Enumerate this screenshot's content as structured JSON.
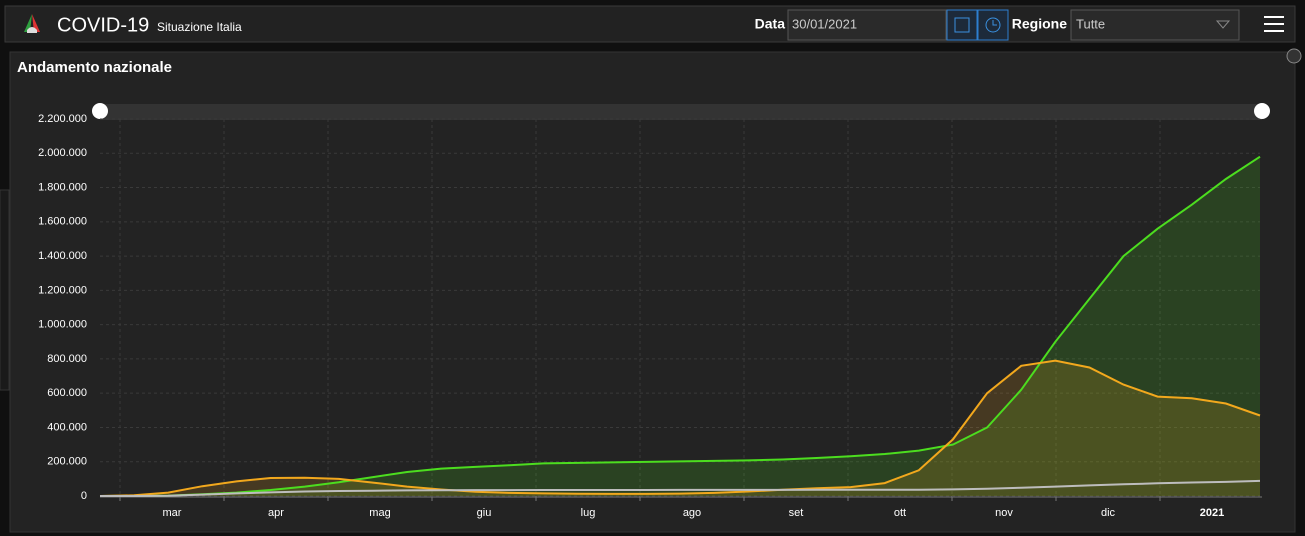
{
  "header": {
    "title": "COVID-19",
    "subtitle": "Situazione Italia",
    "date_label": "Data",
    "date_value": "30/01/2021",
    "region_label": "Regione",
    "region_value": "Tutte"
  },
  "chart_data": {
    "type": "line",
    "title": "Andamento nazionale",
    "xticks": [
      "mar",
      "apr",
      "mag",
      "giu",
      "lug",
      "ago",
      "set",
      "ott",
      "nov",
      "dic",
      "2021"
    ],
    "ylim": [
      0,
      2200000
    ],
    "yticks": [
      0,
      {
        "value": 200000,
        "label": "200.000"
      },
      {
        "value": 400000,
        "label": "400.000"
      },
      {
        "value": 600000,
        "label": "600.000"
      },
      {
        "value": 800000,
        "label": "800.000"
      },
      {
        "value": 1000000,
        "label": "1.000.000"
      },
      {
        "value": 1200000,
        "label": "1.200.000"
      },
      {
        "value": 1400000,
        "label": "1.400.000"
      },
      {
        "value": 1600000,
        "label": "1.600.000"
      },
      {
        "value": 1800000,
        "label": "1.800.000"
      },
      {
        "value": 2000000,
        "label": "2.000.000"
      },
      {
        "value": 2200000,
        "label": "2.200.000"
      }
    ],
    "grid": true,
    "series": [
      {
        "color": "#4cdd1f",
        "values": [
          0,
          1000,
          2300,
          10000,
          20000,
          35000,
          55000,
          80000,
          110000,
          140000,
          160000,
          170000,
          180000,
          190000,
          193000,
          196000,
          199000,
          202000,
          205000,
          208000,
          213000,
          222000,
          232000,
          245000,
          265000,
          300000,
          400000,
          620000,
          900000,
          1150000,
          1400000,
          1560000,
          1700000,
          1850000,
          1980000
        ]
      },
      {
        "color": "#f2a81d",
        "values": [
          200,
          3900,
          20000,
          57000,
          85000,
          105000,
          106000,
          100000,
          78000,
          55000,
          38000,
          25000,
          18000,
          15000,
          13000,
          12500,
          12500,
          14000,
          18000,
          26000,
          36000,
          45000,
          52000,
          75000,
          150000,
          330000,
          600000,
          760000,
          790000,
          750000,
          650000,
          580000,
          570000,
          540000,
          470000
        ]
      },
      {
        "color": "#bdbdbd",
        "values": [
          7,
          150,
          1800,
          8000,
          15000,
          21000,
          26000,
          29000,
          31000,
          32600,
          33600,
          34200,
          34700,
          34900,
          35000,
          35100,
          35200,
          35400,
          35500,
          35600,
          35800,
          36000,
          36000,
          36400,
          37000,
          38600,
          42000,
          48500,
          55000,
          62000,
          68000,
          74000,
          78500,
          82500,
          88000
        ]
      }
    ]
  }
}
